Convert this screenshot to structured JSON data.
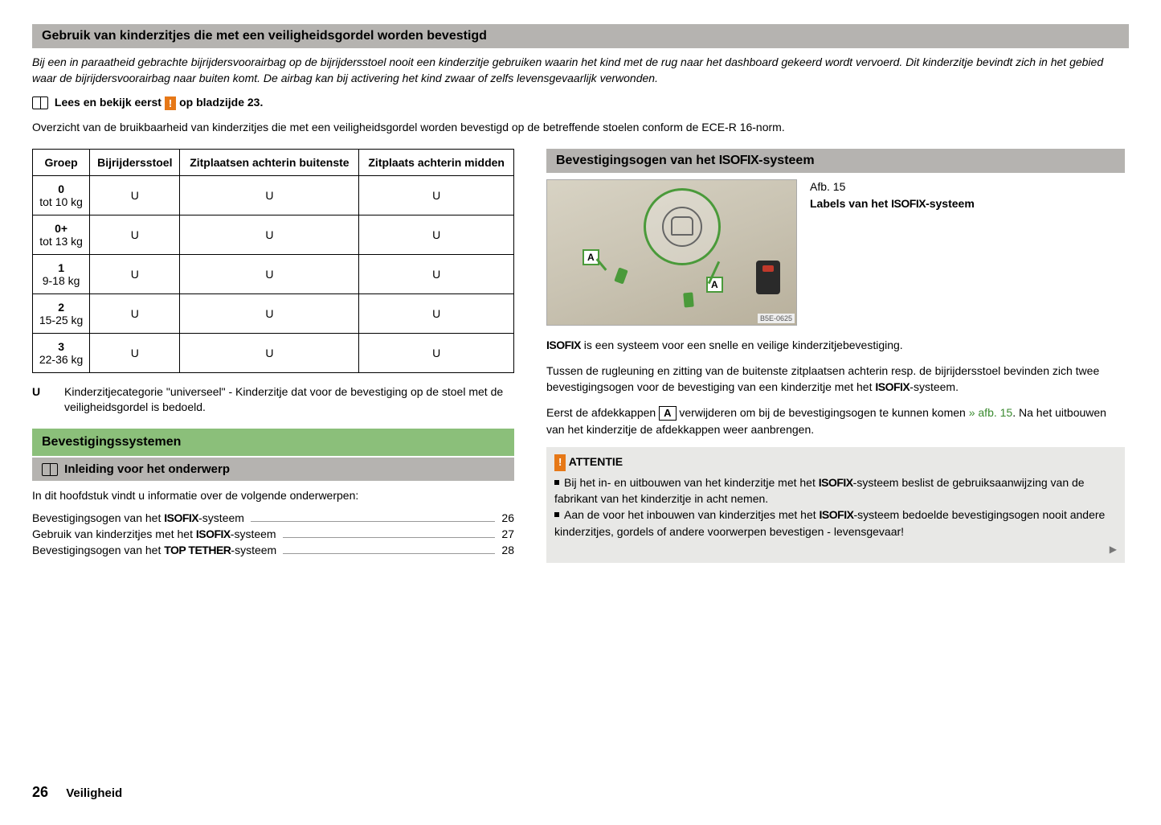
{
  "header": "Gebruik van kinderzitjes die met een veiligheidsgordel worden bevestigd",
  "intro": "Bij een in paraatheid gebrachte bijrijdersvoorairbag op de bijrijdersstoel nooit een kinderzitje gebruiken waarin het kind met de rug naar het dashboard gekeerd wordt vervoerd. Dit kinderzitje bevindt zich in het gebied waar de bijrijdersvoorairbag naar buiten komt. De airbag kan bij activering het kind zwaar of zelfs levensgevaarlijk verwonden.",
  "read_first_pre": "Lees en bekijk eerst",
  "read_first_icon": "!",
  "read_first_post": "op bladzijde 23.",
  "overview": "Overzicht van de bruikbaarheid van kinderzitjes die met een veiligheidsgordel worden bevestigd op de betreffende stoelen conform de ECE-R 16-norm.",
  "table": {
    "headers": [
      "Groep",
      "Bijrijdersstoel",
      "Zitplaatsen achterin buitenste",
      "Zitplaats achterin midden"
    ],
    "rows": [
      [
        "0\ntot 10 kg",
        "U",
        "U",
        "U"
      ],
      [
        "0+\ntot 13 kg",
        "U",
        "U",
        "U"
      ],
      [
        "1\n9-18 kg",
        "U",
        "U",
        "U"
      ],
      [
        "2\n15-25 kg",
        "U",
        "U",
        "U"
      ],
      [
        "3\n22-36 kg",
        "U",
        "U",
        "U"
      ]
    ]
  },
  "legend_key": "U",
  "legend_text": "Kinderzitjecategorie \"universeel\" - Kinderzitje dat voor de bevestiging op de stoel met de veiligheidsgordel is bedoeld.",
  "green_header": "Bevestigingssystemen",
  "grey_subheader": "Inleiding voor het onderwerp",
  "chapter_intro": "In dit hoofdstuk vindt u informatie over de volgende onderwerpen:",
  "toc": [
    {
      "label_pre": "Bevestigingsogen van het ",
      "label_iso": "ISOFIX",
      "label_post": "-systeem",
      "page": "26"
    },
    {
      "label_pre": "Gebruik van kinderzitjes met het ",
      "label_iso": "ISOFIX",
      "label_post": "-systeem",
      "page": "27"
    },
    {
      "label_pre": "Bevestigingsogen van het ",
      "label_iso": "TOP TETHER",
      "label_post": "-systeem",
      "page": "28"
    }
  ],
  "right_header": "Bevestigingsogen van het ISOFIX-systeem",
  "fig_num": "Afb. 15",
  "fig_title": "Labels van het ISOFIX-systeem",
  "img_code": "B5E-0625",
  "anchor_label": "A",
  "callout_icon": "child-seat-isofix-icon",
  "p1_pre": "ISOFIX",
  "p1_post": " is een systeem voor een snelle en veilige kinderzitjebevestiging.",
  "p2": "Tussen de rugleuning en zitting van de buitenste zitplaatsen achterin resp. de bijrijdersstoel bevinden zich twee bevestigingsogen voor de bevestiging van een kinderzitje met het ISOFIX-systeem.",
  "p3_a": "Eerst de afdekkappen ",
  "p3_box": "A",
  "p3_b": " verwijderen om bij de bevestigingsogen te kunnen komen ",
  "p3_link": "» afb. 15",
  "p3_c": ". Na het uitbouwen van het kinderzitje de afdekkappen weer aanbrengen.",
  "attentie_icon": "!",
  "attentie_title": "ATTENTIE",
  "attentie_items": [
    "Bij het in- en uitbouwen van het kinderzitje met het ISOFIX-systeem beslist de gebruiksaanwijzing van de fabrikant van het kinderzitje in acht nemen.",
    "Aan de voor het inbouwen van kinderzitjes met het ISOFIX-systeem bedoelde bevestigingsogen nooit andere kinderzitjes, gordels of andere voorwerpen bevestigen - levensgevaar!"
  ],
  "footer_page": "26",
  "footer_section": "Veiligheid"
}
